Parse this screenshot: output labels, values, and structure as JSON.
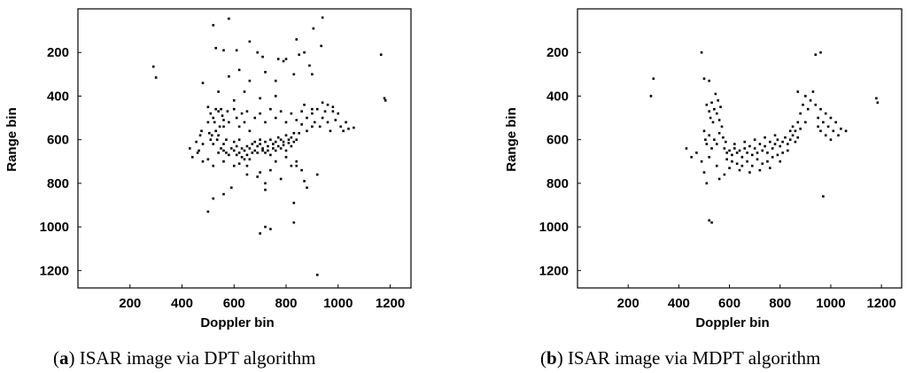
{
  "chart_data": [
    {
      "type": "scatter",
      "panel_label": "a",
      "caption_text": "ISAR image via DPT algorithm",
      "xlabel": "Doppler bin",
      "ylabel": "Range bin",
      "xlim": [
        0,
        1280
      ],
      "ylim": [
        1280,
        0
      ],
      "xticks": [
        200,
        400,
        600,
        800,
        1000,
        1200
      ],
      "yticks": [
        200,
        400,
        600,
        800,
        1000,
        1200
      ],
      "grid": false,
      "points": [
        [
          290,
          265
        ],
        [
          300,
          315
        ],
        [
          1165,
          210
        ],
        [
          1178,
          410
        ],
        [
          1182,
          420
        ],
        [
          520,
          75
        ],
        [
          580,
          45
        ],
        [
          940,
          40
        ],
        [
          660,
          150
        ],
        [
          840,
          140
        ],
        [
          870,
          200
        ],
        [
          905,
          90
        ],
        [
          935,
          170
        ],
        [
          530,
          180
        ],
        [
          560,
          190
        ],
        [
          610,
          190
        ],
        [
          620,
          280
        ],
        [
          660,
          330
        ],
        [
          690,
          200
        ],
        [
          710,
          220
        ],
        [
          770,
          230
        ],
        [
          790,
          240
        ],
        [
          800,
          230
        ],
        [
          830,
          300
        ],
        [
          850,
          210
        ],
        [
          720,
          290
        ],
        [
          760,
          330
        ],
        [
          700,
          410
        ],
        [
          760,
          400
        ],
        [
          890,
          260
        ],
        [
          900,
          300
        ],
        [
          480,
          340
        ],
        [
          540,
          380
        ],
        [
          600,
          420
        ],
        [
          640,
          380
        ],
        [
          580,
          310
        ],
        [
          500,
          450
        ],
        [
          510,
          480
        ],
        [
          520,
          500
        ],
        [
          525,
          520
        ],
        [
          530,
          460
        ],
        [
          540,
          470
        ],
        [
          545,
          540
        ],
        [
          550,
          460
        ],
        [
          555,
          490
        ],
        [
          560,
          510
        ],
        [
          560,
          540
        ],
        [
          500,
          520
        ],
        [
          505,
          570
        ],
        [
          510,
          600
        ],
        [
          515,
          580
        ],
        [
          520,
          620
        ],
        [
          530,
          560
        ],
        [
          535,
          600
        ],
        [
          540,
          580
        ],
        [
          550,
          640
        ],
        [
          560,
          620
        ],
        [
          570,
          600
        ],
        [
          575,
          470
        ],
        [
          580,
          520
        ],
        [
          600,
          460
        ],
        [
          610,
          500
        ],
        [
          620,
          540
        ],
        [
          630,
          480
        ],
        [
          640,
          520
        ],
        [
          650,
          470
        ],
        [
          660,
          560
        ],
        [
          680,
          500
        ],
        [
          700,
          480
        ],
        [
          720,
          520
        ],
        [
          740,
          460
        ],
        [
          760,
          500
        ],
        [
          780,
          470
        ],
        [
          800,
          520
        ],
        [
          820,
          480
        ],
        [
          840,
          510
        ],
        [
          860,
          470
        ],
        [
          880,
          500
        ],
        [
          900,
          480
        ],
        [
          910,
          520
        ],
        [
          920,
          460
        ],
        [
          930,
          540
        ],
        [
          940,
          500
        ],
        [
          950,
          470
        ],
        [
          960,
          520
        ],
        [
          970,
          560
        ],
        [
          980,
          470
        ],
        [
          990,
          510
        ],
        [
          1000,
          480
        ],
        [
          1010,
          540
        ],
        [
          1020,
          560
        ],
        [
          1030,
          520
        ],
        [
          1040,
          550
        ],
        [
          1060,
          545
        ],
        [
          980,
          450
        ],
        [
          960,
          440
        ],
        [
          940,
          430
        ],
        [
          900,
          460
        ],
        [
          870,
          440
        ],
        [
          860,
          530
        ],
        [
          880,
          560
        ],
        [
          900,
          540
        ],
        [
          850,
          570
        ],
        [
          590,
          640
        ],
        [
          600,
          650
        ],
        [
          610,
          630
        ],
        [
          620,
          660
        ],
        [
          630,
          640
        ],
        [
          640,
          650
        ],
        [
          650,
          630
        ],
        [
          660,
          640
        ],
        [
          670,
          620
        ],
        [
          680,
          650
        ],
        [
          690,
          630
        ],
        [
          700,
          620
        ],
        [
          710,
          640
        ],
        [
          720,
          610
        ],
        [
          730,
          630
        ],
        [
          740,
          600
        ],
        [
          750,
          620
        ],
        [
          760,
          610
        ],
        [
          770,
          590
        ],
        [
          780,
          600
        ],
        [
          790,
          610
        ],
        [
          800,
          580
        ],
        [
          810,
          600
        ],
        [
          820,
          590
        ],
        [
          830,
          570
        ],
        [
          840,
          600
        ],
        [
          610,
          670
        ],
        [
          630,
          680
        ],
        [
          650,
          670
        ],
        [
          670,
          660
        ],
        [
          690,
          660
        ],
        [
          710,
          650
        ],
        [
          730,
          650
        ],
        [
          750,
          640
        ],
        [
          770,
          630
        ],
        [
          790,
          625
        ],
        [
          810,
          615
        ],
        [
          830,
          610
        ],
        [
          600,
          610
        ],
        [
          620,
          600
        ],
        [
          640,
          690
        ],
        [
          660,
          690
        ],
        [
          680,
          610
        ],
        [
          700,
          600
        ],
        [
          720,
          660
        ],
        [
          740,
          670
        ],
        [
          760,
          650
        ],
        [
          780,
          640
        ],
        [
          800,
          650
        ],
        [
          820,
          630
        ],
        [
          560,
          650
        ],
        [
          570,
          660
        ],
        [
          580,
          670
        ],
        [
          430,
          640
        ],
        [
          440,
          680
        ],
        [
          460,
          660
        ],
        [
          480,
          700
        ],
        [
          500,
          690
        ],
        [
          520,
          720
        ],
        [
          540,
          660
        ],
        [
          560,
          700
        ],
        [
          600,
          720
        ],
        [
          650,
          720
        ],
        [
          700,
          750
        ],
        [
          720,
          800
        ],
        [
          740,
          740
        ],
        [
          760,
          700
        ],
        [
          780,
          780
        ],
        [
          800,
          680
        ],
        [
          820,
          720
        ],
        [
          840,
          700
        ],
        [
          860,
          740
        ],
        [
          870,
          790
        ],
        [
          880,
          820
        ],
        [
          920,
          760
        ],
        [
          840,
          720
        ],
        [
          690,
          770
        ],
        [
          720,
          830
        ],
        [
          650,
          760
        ],
        [
          620,
          710
        ],
        [
          500,
          930
        ],
        [
          520,
          870
        ],
        [
          560,
          850
        ],
        [
          590,
          820
        ],
        [
          700,
          1030
        ],
        [
          720,
          1000
        ],
        [
          740,
          1010
        ],
        [
          830,
          890
        ],
        [
          830,
          980
        ],
        [
          920,
          1220
        ],
        [
          470,
          580
        ],
        [
          480,
          620
        ],
        [
          455,
          610
        ],
        [
          465,
          650
        ],
        [
          475,
          560
        ]
      ]
    },
    {
      "type": "scatter",
      "panel_label": "b",
      "caption_text": "ISAR image via MDPT algorithm",
      "xlabel": "Doppler bin",
      "ylabel": "Range bin",
      "xlim": [
        0,
        1280
      ],
      "ylim": [
        1280,
        0
      ],
      "xticks": [
        200,
        400,
        600,
        800,
        1000,
        1200
      ],
      "yticks": [
        200,
        400,
        600,
        800,
        1000,
        1200
      ],
      "grid": false,
      "points": [
        [
          290,
          400
        ],
        [
          300,
          320
        ],
        [
          960,
          200
        ],
        [
          940,
          210
        ],
        [
          970,
          860
        ],
        [
          1180,
          410
        ],
        [
          1185,
          430
        ],
        [
          490,
          200
        ],
        [
          500,
          320
        ],
        [
          520,
          330
        ],
        [
          510,
          440
        ],
        [
          520,
          470
        ],
        [
          525,
          500
        ],
        [
          530,
          430
        ],
        [
          535,
          520
        ],
        [
          540,
          460
        ],
        [
          545,
          390
        ],
        [
          550,
          480
        ],
        [
          555,
          420
        ],
        [
          560,
          510
        ],
        [
          565,
          450
        ],
        [
          570,
          540
        ],
        [
          500,
          560
        ],
        [
          505,
          600
        ],
        [
          510,
          620
        ],
        [
          520,
          580
        ],
        [
          530,
          640
        ],
        [
          540,
          600
        ],
        [
          550,
          620
        ],
        [
          560,
          570
        ],
        [
          575,
          590
        ],
        [
          585,
          610
        ],
        [
          580,
          640
        ],
        [
          590,
          660
        ],
        [
          600,
          650
        ],
        [
          610,
          670
        ],
        [
          620,
          640
        ],
        [
          630,
          660
        ],
        [
          640,
          650
        ],
        [
          650,
          680
        ],
        [
          660,
          640
        ],
        [
          670,
          660
        ],
        [
          680,
          630
        ],
        [
          690,
          670
        ],
        [
          700,
          640
        ],
        [
          710,
          660
        ],
        [
          720,
          620
        ],
        [
          730,
          650
        ],
        [
          740,
          630
        ],
        [
          750,
          660
        ],
        [
          760,
          610
        ],
        [
          770,
          640
        ],
        [
          780,
          620
        ],
        [
          790,
          600
        ],
        [
          800,
          630
        ],
        [
          810,
          610
        ],
        [
          820,
          590
        ],
        [
          830,
          620
        ],
        [
          840,
          600
        ],
        [
          850,
          580
        ],
        [
          860,
          610
        ],
        [
          870,
          590
        ],
        [
          590,
          690
        ],
        [
          610,
          700
        ],
        [
          630,
          710
        ],
        [
          650,
          720
        ],
        [
          670,
          700
        ],
        [
          690,
          720
        ],
        [
          710,
          690
        ],
        [
          730,
          710
        ],
        [
          750,
          700
        ],
        [
          770,
          680
        ],
        [
          790,
          670
        ],
        [
          810,
          660
        ],
        [
          830,
          650
        ],
        [
          600,
          730
        ],
        [
          640,
          740
        ],
        [
          680,
          750
        ],
        [
          720,
          740
        ],
        [
          760,
          730
        ],
        [
          800,
          700
        ],
        [
          620,
          620
        ],
        [
          660,
          610
        ],
        [
          700,
          600
        ],
        [
          740,
          590
        ],
        [
          780,
          580
        ],
        [
          430,
          640
        ],
        [
          450,
          680
        ],
        [
          470,
          660
        ],
        [
          490,
          700
        ],
        [
          500,
          750
        ],
        [
          510,
          800
        ],
        [
          560,
          780
        ],
        [
          580,
          760
        ],
        [
          550,
          720
        ],
        [
          520,
          680
        ],
        [
          860,
          560
        ],
        [
          870,
          520
        ],
        [
          880,
          480
        ],
        [
          890,
          440
        ],
        [
          900,
          400
        ],
        [
          910,
          460
        ],
        [
          920,
          420
        ],
        [
          930,
          380
        ],
        [
          940,
          440
        ],
        [
          950,
          500
        ],
        [
          960,
          460
        ],
        [
          970,
          520
        ],
        [
          980,
          480
        ],
        [
          990,
          540
        ],
        [
          1000,
          500
        ],
        [
          1010,
          560
        ],
        [
          1020,
          520
        ],
        [
          1030,
          580
        ],
        [
          1040,
          550
        ],
        [
          1060,
          560
        ],
        [
          870,
          380
        ],
        [
          900,
          520
        ],
        [
          880,
          550
        ],
        [
          850,
          540
        ],
        [
          840,
          560
        ],
        [
          960,
          560
        ],
        [
          980,
          580
        ],
        [
          1000,
          600
        ],
        [
          950,
          540
        ],
        [
          530,
          980
        ],
        [
          520,
          970
        ]
      ]
    }
  ]
}
